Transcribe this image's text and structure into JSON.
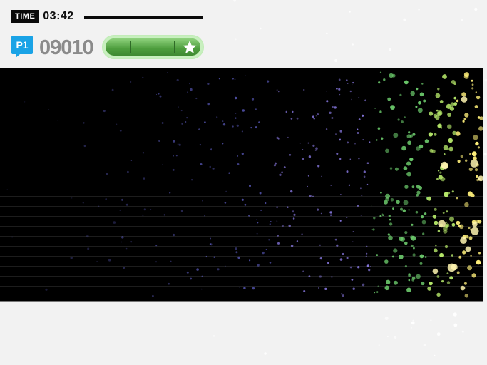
{
  "hud": {
    "time_label": "TIME",
    "time_value": "03:42",
    "player_label": "P1",
    "score": "09010",
    "gauge": {
      "fill_fraction": 1.0,
      "segments": 3,
      "end_icon": "star-icon"
    }
  },
  "colors": {
    "background": "#f2f2f2",
    "stage": "#000000",
    "p1_badge": "#1aa3e6",
    "gauge_green": "#5fae4e",
    "particle_palette": [
      "#7a7aff",
      "#9a88ff",
      "#6fd06f",
      "#b6e86a",
      "#fff07a"
    ]
  },
  "stage": {
    "lane_lines": 10
  }
}
